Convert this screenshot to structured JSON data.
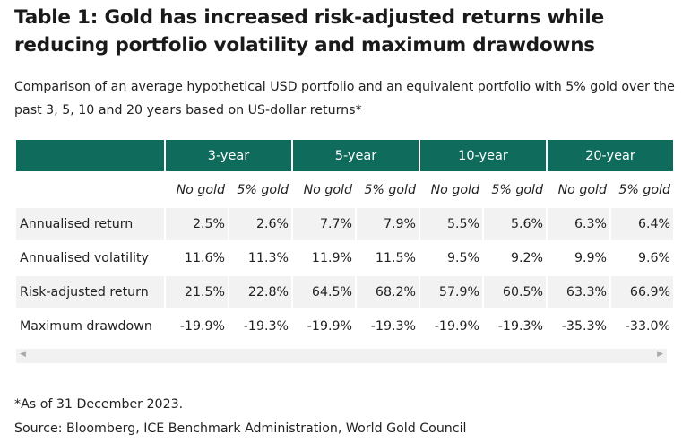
{
  "title": "Table 1: Gold has increased risk-adjusted returns while reducing portfolio volatility and maximum drawdowns",
  "subtitle": "Comparison of an average hypothetical USD portfolio and an equivalent portfolio with 5% gold over the past 3, 5, 10 and 20 years based on US-dollar returns*",
  "colors": {
    "header_bg": "#0f6b5c",
    "row_alt": "#f2f2f2"
  },
  "table": {
    "groups": [
      "3-year",
      "5-year",
      "10-year",
      "20-year"
    ],
    "subheaders": [
      "No gold",
      "5% gold",
      "No gold",
      "5% gold",
      "No gold",
      "5% gold",
      "No gold",
      "5% gold"
    ],
    "rows": [
      {
        "label": "Annualised return",
        "values": [
          "2.5%",
          "2.6%",
          "7.7%",
          "7.9%",
          "5.5%",
          "5.6%",
          "6.3%",
          "6.4%"
        ]
      },
      {
        "label": "Annualised volatility",
        "values": [
          "11.6%",
          "11.3%",
          "11.9%",
          "11.5%",
          "9.5%",
          "9.2%",
          "9.9%",
          "9.6%"
        ]
      },
      {
        "label": "Risk-adjusted return",
        "values": [
          "21.5%",
          "22.8%",
          "64.5%",
          "68.2%",
          "57.9%",
          "60.5%",
          "63.3%",
          "66.9%"
        ]
      },
      {
        "label": "Maximum drawdown",
        "values": [
          "-19.9%",
          "-19.3%",
          "-19.9%",
          "-19.3%",
          "-19.9%",
          "-19.3%",
          "-35.3%",
          "-33.0%"
        ]
      }
    ]
  },
  "footnote": "*As of 31 December 2023.",
  "source": "Source: Bloomberg, ICE Benchmark Administration, World Gold Council"
}
